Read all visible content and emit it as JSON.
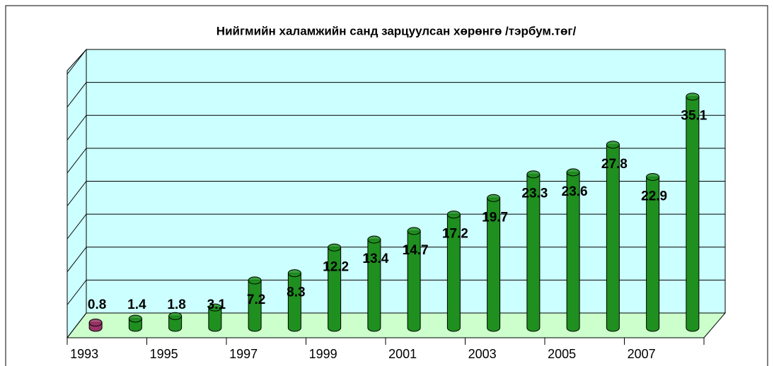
{
  "chart_data": {
    "type": "bar3d",
    "title": "Нийгмийн халамжийн санд зарцуулсан хөрөнгө /тэрбум.төг/",
    "categories": [
      "1993",
      null,
      "1995",
      null,
      "1997",
      null,
      "1999",
      null,
      "2001",
      null,
      "2003",
      null,
      "2005",
      null,
      "2007",
      null
    ],
    "values": [
      0.8,
      1.4,
      1.8,
      3.1,
      7.2,
      8.3,
      12.2,
      13.4,
      14.7,
      17.2,
      19.7,
      23.3,
      23.6,
      27.8,
      22.9,
      35.1
    ],
    "colors": [
      "#993366",
      "#1f8f1f",
      "#1f8f1f",
      "#1f8f1f",
      "#1f8f1f",
      "#1f8f1f",
      "#1f8f1f",
      "#1f8f1f",
      "#1f8f1f",
      "#1f8f1f",
      "#1f8f1f",
      "#1f8f1f",
      "#1f8f1f",
      "#1f8f1f",
      "#1f8f1f",
      "#1f8f1f"
    ],
    "ylim": [
      0,
      40
    ],
    "yticks": [
      0,
      5,
      10,
      15,
      20,
      25,
      30,
      35,
      40
    ],
    "grid": true
  }
}
